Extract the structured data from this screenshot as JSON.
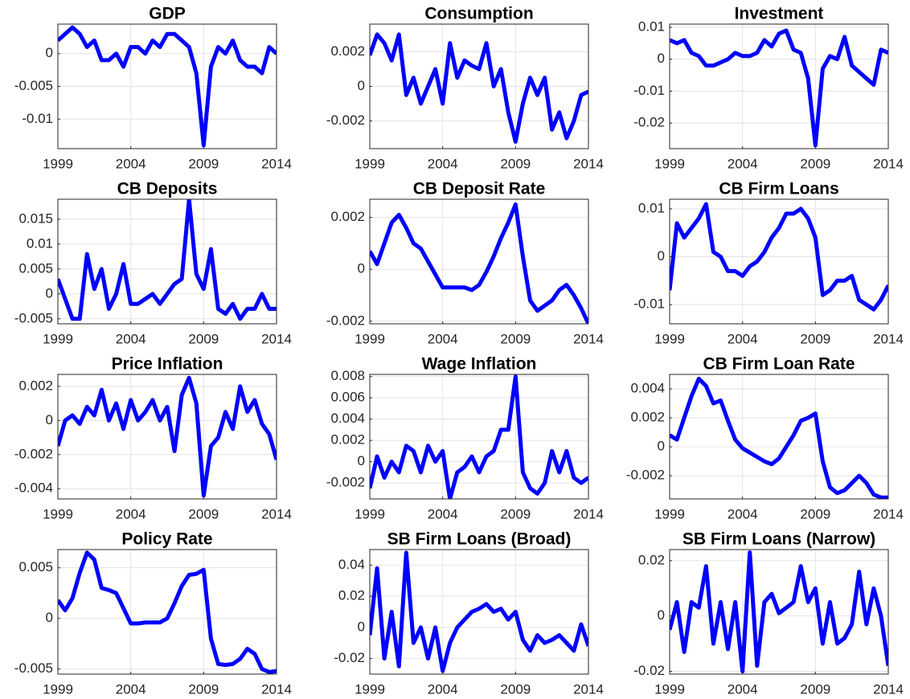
{
  "chart_data": [
    {
      "type": "line",
      "title": "GDP",
      "x": [
        1999,
        1999.5,
        2000,
        2000.5,
        2001,
        2001.5,
        2002,
        2002.5,
        2003,
        2003.5,
        2004,
        2004.5,
        2005,
        2005.5,
        2006,
        2006.5,
        2007,
        2007.5,
        2008,
        2008.5,
        2009,
        2009.5,
        2010,
        2010.5,
        2011,
        2011.5,
        2012,
        2012.5,
        2013,
        2013.5,
        2014
      ],
      "series": [
        {
          "color": "#0000ff",
          "values": [
            0.002,
            0.003,
            0.004,
            0.003,
            0.001,
            0.002,
            -0.001,
            -0.001,
            0,
            -0.002,
            0.001,
            0.001,
            0,
            0.002,
            0.001,
            0.003,
            0.003,
            0.002,
            0.001,
            -0.003,
            -0.014,
            -0.002,
            0.001,
            0,
            0.002,
            -0.001,
            -0.002,
            -0.002,
            -0.003,
            0.001,
            0
          ]
        }
      ],
      "xlim": [
        1999,
        2014
      ],
      "ylim": [
        -0.0145,
        0.0045
      ],
      "xticks": [
        1999,
        2004,
        2009,
        2014
      ],
      "yticks": [
        0,
        -0.005,
        -0.01
      ],
      "grid": true
    },
    {
      "type": "line",
      "title": "Consumption",
      "x": [
        1999,
        1999.5,
        2000,
        2000.5,
        2001,
        2001.5,
        2002,
        2002.5,
        2003,
        2003.5,
        2004,
        2004.5,
        2005,
        2005.5,
        2006,
        2006.5,
        2007,
        2007.5,
        2008,
        2008.5,
        2009,
        2009.5,
        2010,
        2010.5,
        2011,
        2011.5,
        2012,
        2012.5,
        2013,
        2013.5,
        2014
      ],
      "series": [
        {
          "color": "#0000ff",
          "values": [
            0.0018,
            0.003,
            0.0025,
            0.0015,
            0.003,
            -0.0005,
            0.0005,
            -0.001,
            0,
            0.001,
            -0.001,
            0.0025,
            0.0005,
            0.0015,
            0.0012,
            0.001,
            0.0025,
            0,
            0.001,
            -0.0015,
            -0.0032,
            -0.001,
            0.0005,
            -0.0005,
            0.0005,
            -0.0025,
            -0.0015,
            -0.003,
            -0.002,
            -0.0005,
            -0.0003
          ]
        }
      ],
      "xlim": [
        1999,
        2014
      ],
      "ylim": [
        -0.0036,
        0.0036
      ],
      "xticks": [
        1999,
        2004,
        2009,
        2014
      ],
      "yticks": [
        0.002,
        0,
        -0.002
      ],
      "grid": true
    },
    {
      "type": "line",
      "title": "Investment",
      "x": [
        1999,
        1999.5,
        2000,
        2000.5,
        2001,
        2001.5,
        2002,
        2002.5,
        2003,
        2003.5,
        2004,
        2004.5,
        2005,
        2005.5,
        2006,
        2006.5,
        2007,
        2007.5,
        2008,
        2008.5,
        2009,
        2009.5,
        2010,
        2010.5,
        2011,
        2011.5,
        2012,
        2012.5,
        2013,
        2013.5,
        2014
      ],
      "series": [
        {
          "color": "#0000ff",
          "values": [
            0.006,
            0.005,
            0.006,
            0.002,
            0.001,
            -0.002,
            -0.002,
            -0.001,
            0,
            0.002,
            0.001,
            0.001,
            0.002,
            0.006,
            0.004,
            0.008,
            0.009,
            0.003,
            0.002,
            -0.006,
            -0.027,
            -0.003,
            0.001,
            0,
            0.007,
            -0.002,
            -0.004,
            -0.006,
            -0.008,
            0.003,
            0.002
          ]
        }
      ],
      "xlim": [
        1999,
        2014
      ],
      "ylim": [
        -0.028,
        0.011
      ],
      "xticks": [
        1999,
        2004,
        2009,
        2014
      ],
      "yticks": [
        0.01,
        0,
        -0.01,
        -0.02
      ],
      "grid": true
    },
    {
      "type": "line",
      "title": "CB Deposits",
      "x": [
        1999,
        1999.5,
        2000,
        2000.5,
        2001,
        2001.5,
        2002,
        2002.5,
        2003,
        2003.5,
        2004,
        2004.5,
        2005,
        2005.5,
        2006,
        2006.5,
        2007,
        2007.5,
        2008,
        2008.5,
        2009,
        2009.5,
        2010,
        2010.5,
        2011,
        2011.5,
        2012,
        2012.5,
        2013,
        2013.5,
        2014
      ],
      "series": [
        {
          "color": "#0000ff",
          "values": [
            0.003,
            -0.001,
            -0.005,
            -0.005,
            0.008,
            0.001,
            0.005,
            -0.003,
            0,
            0.006,
            -0.002,
            -0.002,
            -0.001,
            0,
            -0.002,
            0,
            0.002,
            0.003,
            0.019,
            0.004,
            0.001,
            0.009,
            -0.003,
            -0.004,
            -0.002,
            -0.005,
            -0.003,
            -0.003,
            0,
            -0.003,
            -0.003
          ]
        }
      ],
      "xlim": [
        1999,
        2014
      ],
      "ylim": [
        -0.006,
        0.019
      ],
      "xticks": [
        1999,
        2004,
        2009,
        2014
      ],
      "yticks": [
        0.015,
        0.01,
        0.005,
        0,
        -0.005
      ],
      "grid": true
    },
    {
      "type": "line",
      "title": "CB Deposit Rate",
      "x": [
        1999,
        1999.5,
        2000,
        2000.5,
        2001,
        2001.5,
        2002,
        2002.5,
        2003,
        2003.5,
        2004,
        2004.5,
        2005,
        2005.5,
        2006,
        2006.5,
        2007,
        2007.5,
        2008,
        2008.5,
        2009,
        2009.5,
        2010,
        2010.5,
        2011,
        2011.5,
        2012,
        2012.5,
        2013,
        2013.5,
        2014
      ],
      "series": [
        {
          "color": "#0000ff",
          "values": [
            0.0007,
            0.0002,
            0.001,
            0.0018,
            0.0021,
            0.0016,
            0.001,
            0.0008,
            0.0003,
            -0.0002,
            -0.0007,
            -0.0007,
            -0.0007,
            -0.0007,
            -0.0008,
            -0.0006,
            -0.0001,
            0.0005,
            0.0012,
            0.0018,
            0.0025,
            0.0005,
            -0.0012,
            -0.0016,
            -0.0014,
            -0.0012,
            -0.0008,
            -0.0006,
            -0.001,
            -0.0015,
            -0.0021
          ]
        }
      ],
      "xlim": [
        1999,
        2014
      ],
      "ylim": [
        -0.0021,
        0.0027
      ],
      "xticks": [
        1999,
        2004,
        2009,
        2014
      ],
      "yticks": [
        0.002,
        0,
        -0.002
      ],
      "grid": true
    },
    {
      "type": "line",
      "title": "CB Firm Loans",
      "x": [
        1999,
        1999.5,
        2000,
        2000.5,
        2001,
        2001.5,
        2002,
        2002.5,
        2003,
        2003.5,
        2004,
        2004.5,
        2005,
        2005.5,
        2006,
        2006.5,
        2007,
        2007.5,
        2008,
        2008.5,
        2009,
        2009.5,
        2010,
        2010.5,
        2011,
        2011.5,
        2012,
        2012.5,
        2013,
        2013.5,
        2014
      ],
      "series": [
        {
          "color": "#0000ff",
          "values": [
            -0.007,
            0.007,
            0.004,
            0.006,
            0.008,
            0.011,
            0.001,
            0,
            -0.003,
            -0.003,
            -0.004,
            -0.002,
            -0.001,
            0.001,
            0.004,
            0.006,
            0.009,
            0.009,
            0.01,
            0.008,
            0.004,
            -0.008,
            -0.007,
            -0.005,
            -0.005,
            -0.004,
            -0.009,
            -0.01,
            -0.011,
            -0.009,
            -0.006
          ]
        }
      ],
      "xlim": [
        1999,
        2014
      ],
      "ylim": [
        -0.014,
        0.012
      ],
      "xticks": [
        1999,
        2004,
        2009,
        2014
      ],
      "yticks": [
        0.01,
        0,
        -0.01
      ],
      "grid": true
    },
    {
      "type": "line",
      "title": "Price Inflation",
      "x": [
        1999,
        1999.5,
        2000,
        2000.5,
        2001,
        2001.5,
        2002,
        2002.5,
        2003,
        2003.5,
        2004,
        2004.5,
        2005,
        2005.5,
        2006,
        2006.5,
        2007,
        2007.5,
        2008,
        2008.5,
        2009,
        2009.5,
        2010,
        2010.5,
        2011,
        2011.5,
        2012,
        2012.5,
        2013,
        2013.5,
        2014
      ],
      "series": [
        {
          "color": "#0000ff",
          "values": [
            -0.0015,
            0,
            0.0003,
            -0.0002,
            0.0008,
            0.0003,
            0.0018,
            0,
            0.001,
            -0.0005,
            0.0012,
            0,
            0.0005,
            0.0012,
            0,
            0.0008,
            -0.0018,
            0.0015,
            0.0025,
            0.001,
            -0.0044,
            -0.0015,
            -0.001,
            0.0005,
            -0.0005,
            0.002,
            0.0005,
            0.0012,
            -0.0002,
            -0.0008,
            -0.0023
          ]
        }
      ],
      "xlim": [
        1999,
        2014
      ],
      "ylim": [
        -0.0046,
        0.0027
      ],
      "xticks": [
        1999,
        2004,
        2009,
        2014
      ],
      "yticks": [
        0.002,
        0,
        -0.002,
        -0.004
      ],
      "grid": true
    },
    {
      "type": "line",
      "title": "Wage Inflation",
      "x": [
        1999,
        1999.5,
        2000,
        2000.5,
        2001,
        2001.5,
        2002,
        2002.5,
        2003,
        2003.5,
        2004,
        2004.5,
        2005,
        2005.5,
        2006,
        2006.5,
        2007,
        2007.5,
        2008,
        2008.5,
        2009,
        2009.5,
        2010,
        2010.5,
        2011,
        2011.5,
        2012,
        2012.5,
        2013,
        2013.5,
        2014
      ],
      "series": [
        {
          "color": "#0000ff",
          "values": [
            -0.0025,
            0.0005,
            -0.0015,
            0,
            -0.001,
            0.0015,
            0.001,
            -0.001,
            0.0015,
            0,
            0.001,
            -0.0035,
            -0.001,
            -0.0005,
            0.0005,
            -0.001,
            0.0005,
            0.001,
            0.003,
            0.003,
            0.008,
            -0.001,
            -0.0025,
            -0.003,
            -0.002,
            0.001,
            -0.001,
            0.001,
            -0.0015,
            -0.002,
            -0.0015
          ]
        }
      ],
      "xlim": [
        1999,
        2014
      ],
      "ylim": [
        -0.0035,
        0.0082
      ],
      "xticks": [
        1999,
        2004,
        2009,
        2014
      ],
      "yticks": [
        0.008,
        0.006,
        0.004,
        0.002,
        0,
        -0.002
      ],
      "grid": true
    },
    {
      "type": "line",
      "title": "CB Firm Loan Rate",
      "x": [
        1999,
        1999.5,
        2000,
        2000.5,
        2001,
        2001.5,
        2002,
        2002.5,
        2003,
        2003.5,
        2004,
        2004.5,
        2005,
        2005.5,
        2006,
        2006.5,
        2007,
        2007.5,
        2008,
        2008.5,
        2009,
        2009.5,
        2010,
        2010.5,
        2011,
        2011.5,
        2012,
        2012.5,
        2013,
        2013.5,
        2014
      ],
      "series": [
        {
          "color": "#0000ff",
          "values": [
            0.0008,
            0.0005,
            0.002,
            0.0035,
            0.0047,
            0.0042,
            0.003,
            0.0032,
            0.0018,
            0.0005,
            -0.0001,
            -0.0004,
            -0.0007,
            -0.001,
            -0.0012,
            -0.0008,
            0,
            0.0008,
            0.0018,
            0.002,
            0.0023,
            -0.001,
            -0.0028,
            -0.0032,
            -0.003,
            -0.0025,
            -0.002,
            -0.0025,
            -0.0033,
            -0.0035,
            -0.0035
          ]
        }
      ],
      "xlim": [
        1999,
        2014
      ],
      "ylim": [
        -0.0036,
        0.005
      ],
      "xticks": [
        1999,
        2004,
        2009,
        2014
      ],
      "yticks": [
        0.004,
        0.002,
        0,
        -0.002
      ],
      "grid": true
    },
    {
      "type": "line",
      "title": "Policy Rate",
      "x": [
        1999,
        1999.5,
        2000,
        2000.5,
        2001,
        2001.5,
        2002,
        2002.5,
        2003,
        2003.5,
        2004,
        2004.5,
        2005,
        2005.5,
        2006,
        2006.5,
        2007,
        2007.5,
        2008,
        2008.5,
        2009,
        2009.5,
        2010,
        2010.5,
        2011,
        2011.5,
        2012,
        2012.5,
        2013,
        2013.5,
        2014
      ],
      "series": [
        {
          "color": "#0000ff",
          "values": [
            0.0018,
            0.0008,
            0.002,
            0.0045,
            0.0065,
            0.0058,
            0.003,
            0.0028,
            0.0025,
            0.001,
            -0.0005,
            -0.0005,
            -0.0004,
            -0.0004,
            -0.0004,
            0,
            0.0015,
            0.0032,
            0.0043,
            0.0044,
            0.0048,
            -0.002,
            -0.0045,
            -0.0046,
            -0.0045,
            -0.004,
            -0.003,
            -0.0035,
            -0.005,
            -0.0053,
            -0.0052
          ]
        }
      ],
      "xlim": [
        1999,
        2014
      ],
      "ylim": [
        -0.0055,
        0.0068
      ],
      "xticks": [
        1999,
        2004,
        2009,
        2014
      ],
      "yticks": [
        0.005,
        0,
        -0.005
      ],
      "grid": true
    },
    {
      "type": "line",
      "title": "SB Firm Loans (Broad)",
      "x": [
        1999,
        1999.5,
        2000,
        2000.5,
        2001,
        2001.5,
        2002,
        2002.5,
        2003,
        2003.5,
        2004,
        2004.5,
        2005,
        2005.5,
        2006,
        2006.5,
        2007,
        2007.5,
        2008,
        2008.5,
        2009,
        2009.5,
        2010,
        2010.5,
        2011,
        2011.5,
        2012,
        2012.5,
        2013,
        2013.5,
        2014
      ],
      "series": [
        {
          "color": "#0000ff",
          "values": [
            -0.005,
            0.038,
            -0.02,
            0.01,
            -0.025,
            0.048,
            -0.01,
            0,
            -0.02,
            0,
            -0.028,
            -0.01,
            0,
            0.005,
            0.01,
            0.012,
            0.015,
            0.01,
            0.012,
            0.005,
            0.01,
            -0.008,
            -0.015,
            -0.005,
            -0.01,
            -0.008,
            -0.005,
            -0.01,
            -0.015,
            0.002,
            -0.012
          ]
        }
      ],
      "xlim": [
        1999,
        2014
      ],
      "ylim": [
        -0.03,
        0.05
      ],
      "xticks": [
        1999,
        2004,
        2009,
        2014
      ],
      "yticks": [
        0.04,
        0.02,
        0,
        -0.02
      ],
      "grid": true
    },
    {
      "type": "line",
      "title": "SB Firm Loans (Narrow)",
      "x": [
        1999,
        1999.5,
        2000,
        2000.5,
        2001,
        2001.5,
        2002,
        2002.5,
        2003,
        2003.5,
        2004,
        2004.5,
        2005,
        2005.5,
        2006,
        2006.5,
        2007,
        2007.5,
        2008,
        2008.5,
        2009,
        2009.5,
        2010,
        2010.5,
        2011,
        2011.5,
        2012,
        2012.5,
        2013,
        2013.5,
        2014
      ],
      "series": [
        {
          "color": "#0000ff",
          "values": [
            -0.005,
            0.005,
            -0.013,
            0.005,
            0.003,
            0.018,
            -0.01,
            0.005,
            -0.012,
            0.005,
            -0.02,
            0.023,
            -0.018,
            0.005,
            0.008,
            0.001,
            0.003,
            0.005,
            0.018,
            0.005,
            0.01,
            -0.01,
            0.005,
            -0.01,
            -0.008,
            -0.003,
            0.016,
            -0.003,
            0.01,
            0,
            -0.018
          ]
        }
      ],
      "xlim": [
        1999,
        2014
      ],
      "ylim": [
        -0.021,
        0.024
      ],
      "xticks": [
        1999,
        2004,
        2009,
        2014
      ],
      "yticks": [
        0.02,
        0,
        -0.02
      ],
      "grid": true
    }
  ]
}
